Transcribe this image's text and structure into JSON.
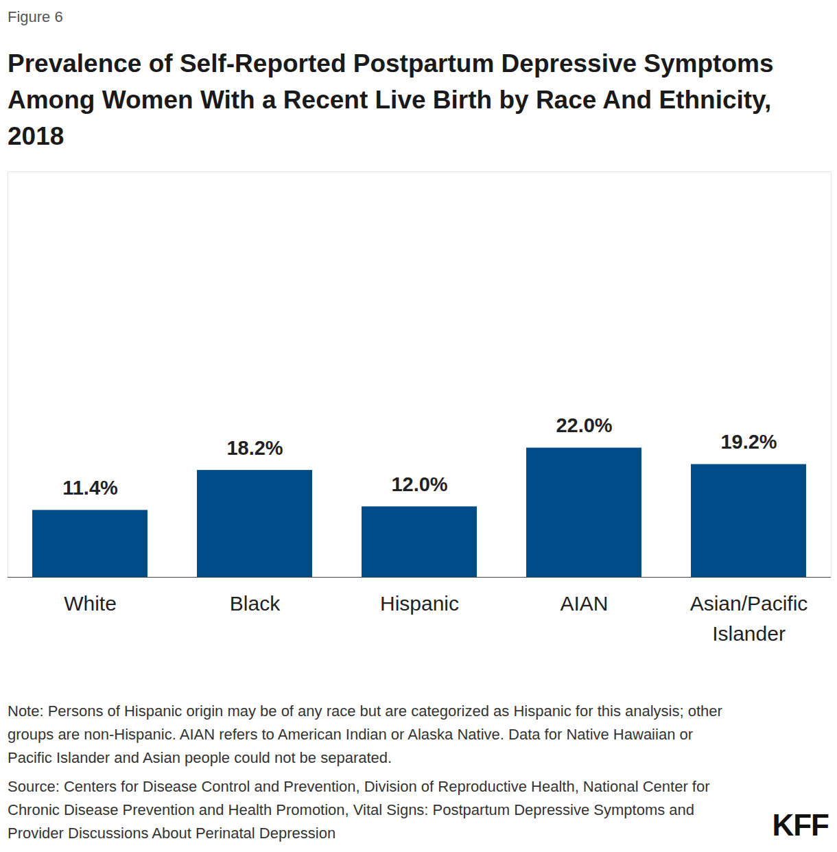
{
  "chart_data": {
    "type": "bar",
    "figure_label": "Figure 6",
    "title": "Prevalence of Self-Reported Postpartum Depressive Symptoms Among Women With a Recent Live Birth by Race And Ethnicity, 2018",
    "categories": [
      "White",
      "Black",
      "Hispanic",
      "AIAN",
      "Asian/Pacific Islander"
    ],
    "values": [
      11.4,
      18.2,
      12.0,
      22.0,
      19.2
    ],
    "value_labels": [
      "11.4%",
      "18.2%",
      "12.0%",
      "22.0%",
      "19.2%"
    ],
    "color": "#004c89",
    "ylim": [
      0,
      69
    ],
    "data_labels": true,
    "tick_labels": "x",
    "note": "Note: Persons of Hispanic origin may be of any race but are categorized as Hispanic for this analysis; other groups are non-Hispanic. AIAN refers to American Indian or Alaska Native. Data for Native Hawaiian or Pacific Islander and Asian people could not be separated.",
    "source": "Source: Centers for Disease Control and Prevention, Division of Reproductive Health, National Center for Chronic Disease Prevention and Health Promotion, Vital Signs: Postpartum Depressive Symptoms and Provider Discussions About Perinatal Depression",
    "logo": "KFF"
  }
}
